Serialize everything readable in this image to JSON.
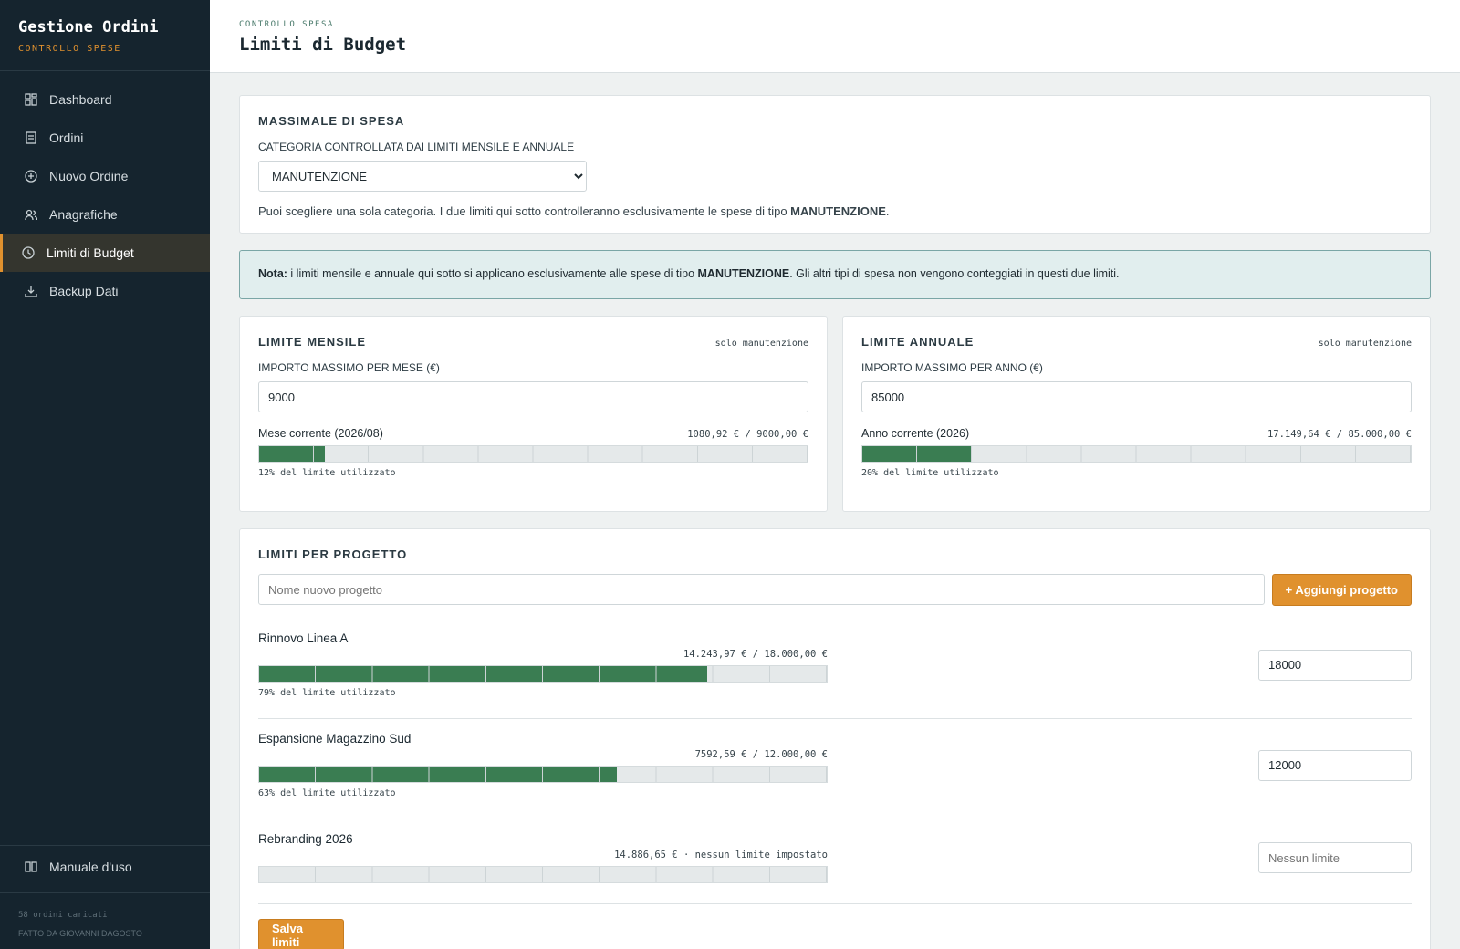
{
  "sidebar": {
    "title": "Gestione Ordini",
    "subtitle": "CONTROLLO SPESE",
    "nav": [
      "Dashboard",
      "Ordini",
      "Nuovo Ordine",
      "Anagrafiche",
      "Limiti di Budget",
      "Backup Dati"
    ],
    "active": 4,
    "manual": "Manuale d'uso",
    "footer": [
      "58 ordini caricati",
      "FATTO DA GIOVANNI DAGOSTO"
    ]
  },
  "header": {
    "eyebrow": "CONTROLLO SPESA",
    "title": "Limiti di Budget"
  },
  "category_card": {
    "title": "MASSIMALE DI SPESA",
    "label": "CATEGORIA CONTROLLATA DAI LIMITI MENSILE E ANNUALE",
    "selected": "MANUTENZIONE",
    "help_before": "Puoi scegliere una sola categoria. I due limiti qui sotto controlleranno esclusivamente le spese di tipo ",
    "help_bold": "MANUTENZIONE",
    "help_after": "."
  },
  "note": {
    "bold": "Nota:",
    "text_before": " i limiti mensile e annuale qui sotto si applicano esclusivamente alle spese di tipo ",
    "bold2": "MANUTENZIONE",
    "text_after": ". Gli altri tipi di spesa non vengono conteggiati in questi due limiti."
  },
  "limits": [
    {
      "title": "LIMITE MENSILE",
      "tag": "solo manutenzione",
      "field_label": "IMPORTO MASSIMO PER MESE (€)",
      "input": "9000",
      "period": "Mese corrente (2026/08)",
      "amount": "1080,92 € / 9000,00 €",
      "usage": {
        "value": 12,
        "label": "12% del limite utilizzato"
      }
    },
    {
      "title": "LIMITE ANNUALE",
      "tag": "solo manutenzione",
      "field_label": "IMPORTO MASSIMO PER ANNO (€)",
      "input": "85000",
      "period": "Anno corrente (2026)",
      "amount": "17.149,64 € / 85.000,00 €",
      "usage": {
        "value": 20,
        "label": "20% del limite utilizzato"
      }
    }
  ],
  "projects": {
    "title": "LIMITI PER PROGETTO",
    "placeholder": "Nome nuovo progetto",
    "add_button": "+ Aggiungi progetto",
    "items": [
      {
        "name": "Rinnovo Linea A",
        "amount": "14.243,97 € / 18.000,00 €",
        "input": "18000",
        "usage": {
          "value": 79,
          "label": "79% del limite utilizzato"
        }
      },
      {
        "name": "Espansione Magazzino Sud",
        "amount": "7592,59 € / 12.000,00 €",
        "input": "12000",
        "usage": {
          "value": 63,
          "label": "63% del limite utilizzato"
        }
      },
      {
        "name": "Rebranding 2026",
        "amount": "14.886,65 € · nessun limite impostato",
        "placeholder": "Nessun limite"
      }
    ],
    "save_button": "Salva limiti"
  }
}
